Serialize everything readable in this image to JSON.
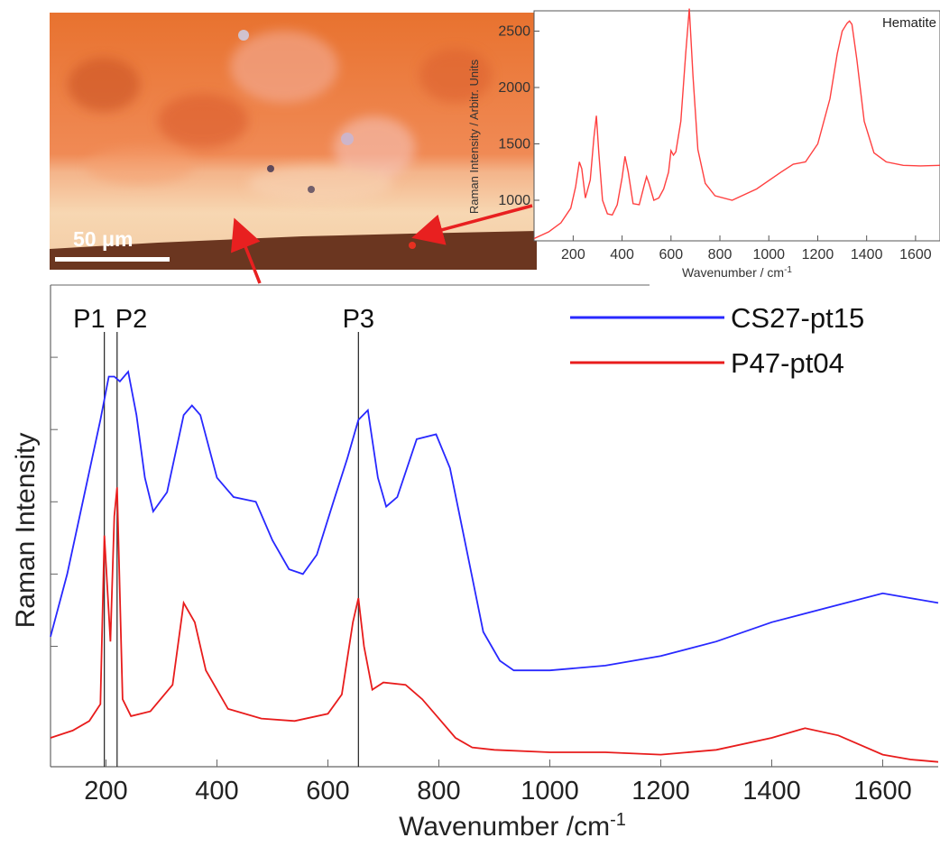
{
  "micrograph": {
    "scale_label": "50 μm"
  },
  "chart_data": [
    {
      "id": "inset",
      "type": "line",
      "title": "Hematite",
      "xlabel": "Wavenumber / cm",
      "xlabel_sup": "-1",
      "ylabel": "Raman Intensity / Arbitr. Units",
      "xlim": [
        40,
        1700
      ],
      "ylim": [
        640,
        2680
      ],
      "xticks": [
        200,
        400,
        600,
        800,
        1000,
        1200,
        1400,
        1600
      ],
      "yticks": [
        1000,
        1500,
        2000,
        2500
      ],
      "grid": false,
      "color": "#ff4040",
      "series": [
        {
          "x": [
            40,
            100,
            150,
            190,
            210,
            225,
            235,
            250,
            270,
            285,
            295,
            305,
            320,
            340,
            360,
            380,
            400,
            412,
            425,
            445,
            470,
            490,
            500,
            510,
            530,
            550,
            570,
            590,
            600,
            610,
            620,
            640,
            660,
            675,
            690,
            710,
            740,
            780,
            850,
            950,
            1050,
            1100,
            1150,
            1200,
            1250,
            1280,
            1300,
            1320,
            1330,
            1340,
            1360,
            1390,
            1430,
            1480,
            1550,
            1620,
            1700
          ],
          "y": [
            660,
            720,
            800,
            930,
            1120,
            1340,
            1280,
            1020,
            1180,
            1560,
            1750,
            1420,
            1000,
            880,
            870,
            960,
            1200,
            1390,
            1250,
            970,
            960,
            1130,
            1210,
            1150,
            1000,
            1020,
            1100,
            1250,
            1440,
            1400,
            1430,
            1700,
            2300,
            2700,
            2100,
            1450,
            1150,
            1040,
            1000,
            1100,
            1250,
            1320,
            1340,
            1500,
            1900,
            2300,
            2500,
            2570,
            2590,
            2560,
            2250,
            1700,
            1420,
            1340,
            1310,
            1305,
            1310
          ]
        }
      ]
    },
    {
      "id": "main",
      "type": "line",
      "title": "",
      "xlabel": "Wavenumber /cm",
      "xlabel_sup": "-1",
      "ylabel": "Raman Intensity",
      "xlim": [
        100,
        1700
      ],
      "ylim": [
        0,
        100
      ],
      "xticks": [
        200,
        400,
        600,
        800,
        1000,
        1200,
        1400,
        1600
      ],
      "legend": "top-right",
      "grid": false,
      "vlines": [
        {
          "label": "P1",
          "x": 197
        },
        {
          "label": "P2",
          "x": 220
        },
        {
          "label": "P3",
          "x": 655
        }
      ],
      "series": [
        {
          "name": "CS27-pt15",
          "color": "#2828ff",
          "x": [
            100,
            130,
            160,
            190,
            205,
            215,
            225,
            240,
            255,
            270,
            285,
            310,
            340,
            355,
            370,
            400,
            430,
            470,
            500,
            530,
            555,
            580,
            610,
            635,
            655,
            672,
            690,
            705,
            725,
            760,
            795,
            820,
            850,
            880,
            910,
            935,
            1000,
            1100,
            1200,
            1300,
            1400,
            1500,
            1600,
            1650,
            1700
          ],
          "y": [
            27,
            40,
            56,
            72,
            81,
            81,
            80,
            82,
            73,
            60,
            53,
            57,
            73,
            75,
            73,
            60,
            56,
            55,
            47,
            41,
            40,
            44,
            55,
            64,
            72,
            74,
            60,
            54,
            56,
            68,
            69,
            62,
            45,
            28,
            22,
            20,
            20,
            21,
            23,
            26,
            30,
            33,
            36,
            35,
            34
          ]
        },
        {
          "name": "P47-pt04",
          "color": "#e81c1c",
          "x": [
            100,
            140,
            170,
            190,
            197,
            208,
            215,
            220,
            230,
            245,
            280,
            320,
            340,
            360,
            380,
            420,
            480,
            540,
            600,
            625,
            645,
            655,
            665,
            680,
            700,
            740,
            770,
            800,
            830,
            860,
            900,
            1000,
            1100,
            1200,
            1300,
            1400,
            1460,
            1520,
            1600,
            1650,
            1700
          ],
          "y": [
            6,
            7.5,
            9.5,
            13,
            48,
            26,
            52,
            58,
            14,
            10.5,
            11.5,
            17,
            34,
            30,
            20,
            12,
            10,
            9.5,
            11,
            15,
            30,
            35,
            25,
            16,
            17.5,
            17,
            14,
            10,
            6,
            4,
            3.5,
            3,
            3,
            2.5,
            3.5,
            6,
            8,
            6.5,
            2.5,
            1.5,
            1
          ]
        }
      ]
    }
  ]
}
